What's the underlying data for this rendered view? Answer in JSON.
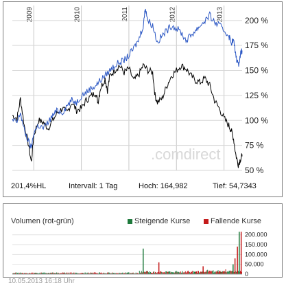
{
  "price_chart": {
    "stats": {
      "performance": "201,4%HL",
      "interval": "Intervall: 1 Tag",
      "high": "Hoch:  164,982",
      "low": "Tief: 54,7343"
    },
    "watermark": ".comdirect",
    "line_colors": {
      "primary": "#000000",
      "secondary": "#2b57c4"
    }
  },
  "volume_chart": {
    "title": "Volumen (rot-grün)",
    "legend_up": "Steigende Kurse",
    "legend_down": "Fallende Kurse",
    "colors": {
      "up": "#1e7a3c",
      "down": "#c41a1a"
    }
  },
  "timestamp": "10.05.2013 16:18 Uhr",
  "chart_data": [
    {
      "type": "line",
      "x_ticks": [
        "2009",
        "2010",
        "2011",
        "2012",
        "2013"
      ],
      "y_ticks": [
        "50 %",
        "75 %",
        "100 %",
        "125 %",
        "150 %",
        "175 %",
        "200 %"
      ],
      "ylim": [
        50,
        215
      ],
      "xlim": [
        2008.55,
        2013.38
      ],
      "grid": true,
      "series": [
        {
          "color": "#000000",
          "points": [
            [
              2008.55,
              105
            ],
            [
              2008.65,
              102
            ],
            [
              2008.72,
              122
            ],
            [
              2008.8,
              95
            ],
            [
              2008.88,
              78
            ],
            [
              2008.95,
              58
            ],
            [
              2009.0,
              85
            ],
            [
              2009.1,
              100
            ],
            [
              2009.2,
              98
            ],
            [
              2009.3,
              92
            ],
            [
              2009.4,
              100
            ],
            [
              2009.5,
              108
            ],
            [
              2009.6,
              112
            ],
            [
              2009.7,
              108
            ],
            [
              2009.8,
              118
            ],
            [
              2009.9,
              110
            ],
            [
              2010.0,
              112
            ],
            [
              2010.1,
              120
            ],
            [
              2010.2,
              124
            ],
            [
              2010.3,
              128
            ],
            [
              2010.35,
              118
            ],
            [
              2010.4,
              132
            ],
            [
              2010.5,
              142
            ],
            [
              2010.55,
              130
            ],
            [
              2010.6,
              145
            ],
            [
              2010.7,
              150
            ],
            [
              2010.8,
              155
            ],
            [
              2010.9,
              148
            ],
            [
              2011.0,
              152
            ],
            [
              2011.1,
              140
            ],
            [
              2011.2,
              145
            ],
            [
              2011.3,
              155
            ],
            [
              2011.4,
              150
            ],
            [
              2011.5,
              148
            ],
            [
              2011.55,
              125
            ],
            [
              2011.6,
              118
            ],
            [
              2011.7,
              122
            ],
            [
              2011.8,
              135
            ],
            [
              2011.9,
              145
            ],
            [
              2012.0,
              150
            ],
            [
              2012.1,
              155
            ],
            [
              2012.2,
              152
            ],
            [
              2012.3,
              145
            ],
            [
              2012.4,
              140
            ],
            [
              2012.5,
              138
            ],
            [
              2012.6,
              142
            ],
            [
              2012.7,
              135
            ],
            [
              2012.8,
              120
            ],
            [
              2012.9,
              112
            ],
            [
              2013.0,
              102
            ],
            [
              2013.1,
              95
            ],
            [
              2013.15,
              90
            ],
            [
              2013.2,
              82
            ],
            [
              2013.25,
              65
            ],
            [
              2013.3,
              56
            ],
            [
              2013.35,
              62
            ],
            [
              2013.38,
              64
            ]
          ]
        },
        {
          "color": "#2b57c4",
          "points": [
            [
              2008.55,
              100
            ],
            [
              2008.65,
              98
            ],
            [
              2008.72,
              108
            ],
            [
              2008.8,
              90
            ],
            [
              2008.88,
              80
            ],
            [
              2008.95,
              72
            ],
            [
              2009.0,
              88
            ],
            [
              2009.1,
              95
            ],
            [
              2009.2,
              92
            ],
            [
              2009.3,
              98
            ],
            [
              2009.4,
              105
            ],
            [
              2009.5,
              110
            ],
            [
              2009.6,
              108
            ],
            [
              2009.7,
              115
            ],
            [
              2009.8,
              120
            ],
            [
              2009.9,
              118
            ],
            [
              2010.0,
              125
            ],
            [
              2010.1,
              128
            ],
            [
              2010.2,
              132
            ],
            [
              2010.3,
              135
            ],
            [
              2010.4,
              140
            ],
            [
              2010.5,
              145
            ],
            [
              2010.6,
              150
            ],
            [
              2010.7,
              155
            ],
            [
              2010.8,
              158
            ],
            [
              2010.9,
              160
            ],
            [
              2011.0,
              165
            ],
            [
              2011.1,
              172
            ],
            [
              2011.2,
              180
            ],
            [
              2011.3,
              195
            ],
            [
              2011.35,
              213
            ],
            [
              2011.4,
              200
            ],
            [
              2011.5,
              195
            ],
            [
              2011.6,
              178
            ],
            [
              2011.7,
              185
            ],
            [
              2011.8,
              190
            ],
            [
              2011.9,
              195
            ],
            [
              2012.0,
              192
            ],
            [
              2012.1,
              188
            ],
            [
              2012.2,
              180
            ],
            [
              2012.3,
              185
            ],
            [
              2012.4,
              190
            ],
            [
              2012.5,
              195
            ],
            [
              2012.6,
              200
            ],
            [
              2012.7,
              205
            ],
            [
              2012.8,
              198
            ],
            [
              2012.9,
              195
            ],
            [
              2013.0,
              190
            ],
            [
              2013.1,
              185
            ],
            [
              2013.15,
              178
            ],
            [
              2013.2,
              180
            ],
            [
              2013.25,
              165
            ],
            [
              2013.3,
              155
            ],
            [
              2013.35,
              168
            ],
            [
              2013.38,
              170
            ]
          ]
        }
      ]
    },
    {
      "type": "bar",
      "y_ticks": [
        "0",
        "50.000",
        "100.000",
        "150.000",
        "200.000"
      ],
      "ylim": [
        0,
        220000
      ],
      "xlim": [
        2008.55,
        2013.38
      ],
      "series": [
        {
          "name": "Steigende Kurse",
          "color": "#1e7a3c"
        },
        {
          "name": "Fallende Kurse",
          "color": "#c41a1a"
        }
      ],
      "spikes": [
        {
          "x": 2011.29,
          "value": 130000,
          "color": "#1e7a3c"
        },
        {
          "x": 2011.62,
          "value": 60000,
          "color": "#c41a1a"
        },
        {
          "x": 2012.55,
          "value": 40000,
          "color": "#c41a1a"
        },
        {
          "x": 2013.18,
          "value": 50000,
          "color": "#1e7a3c"
        },
        {
          "x": 2013.22,
          "value": 80000,
          "color": "#c41a1a"
        },
        {
          "x": 2013.27,
          "value": 140000,
          "color": "#c41a1a"
        },
        {
          "x": 2013.31,
          "value": 215000,
          "color": "#1e7a3c"
        },
        {
          "x": 2013.35,
          "value": 215000,
          "color": "#c41a1a"
        }
      ]
    }
  ]
}
